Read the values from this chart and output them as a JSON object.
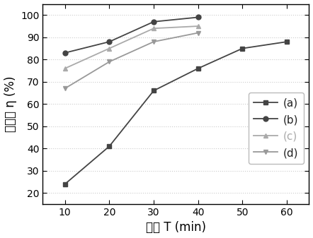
{
  "x": [
    10,
    20,
    30,
    40,
    50,
    60
  ],
  "series": {
    "a": [
      24,
      41,
      66,
      76,
      85,
      88
    ],
    "b": [
      83,
      88,
      97,
      99,
      null,
      null
    ],
    "c": [
      76,
      85,
      94,
      95,
      null,
      null
    ],
    "d": [
      67,
      79,
      88,
      92,
      null,
      null
    ]
  },
  "line_colors": {
    "a": "#444444",
    "b": "#444444",
    "c": "#aaaaaa",
    "d": "#999999"
  },
  "markers": {
    "a": "s",
    "b": "o",
    "c": "^",
    "d": "v"
  },
  "legend_labels": [
    "(a)",
    "(b)",
    "(c)",
    "(d)"
  ],
  "legend_text_colors": [
    "#222222",
    "#222222",
    "#aaaaaa",
    "#222222"
  ],
  "xlabel": "时间 T (min)",
  "ylabel": "降解率 η (%)",
  "xlim": [
    5,
    65
  ],
  "ylim": [
    15,
    105
  ],
  "yticks": [
    20,
    30,
    40,
    50,
    60,
    70,
    80,
    90,
    100
  ],
  "xticks": [
    10,
    20,
    30,
    40,
    50,
    60
  ],
  "figsize": [
    4.42,
    3.37
  ],
  "dpi": 100,
  "grid_color": "#cccccc",
  "grid_linestyle": ":",
  "grid_linewidth": 0.8
}
